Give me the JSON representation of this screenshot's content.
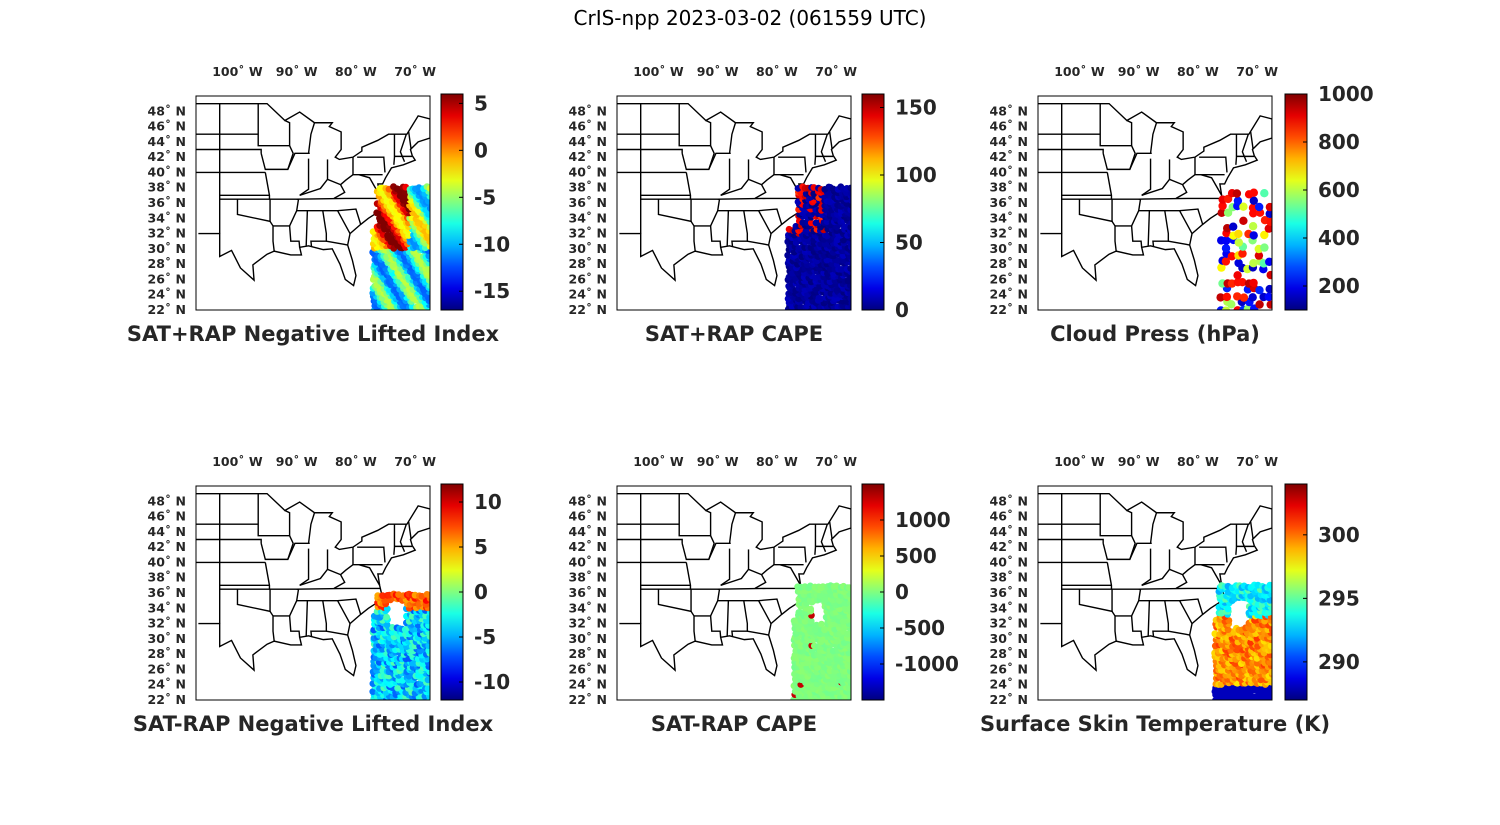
{
  "title": "CrIS-npp 2023-03-02 (061559 UTC)",
  "lon_ticks": [
    {
      "value": -100,
      "label": "100˚ W"
    },
    {
      "value": -90,
      "label": "90˚ W"
    },
    {
      "value": -80,
      "label": "80˚ W"
    },
    {
      "value": -70,
      "label": "70˚ W"
    }
  ],
  "lat_ticks": [
    {
      "value": 22,
      "label": "22˚ N"
    },
    {
      "value": 24,
      "label": "24˚ N"
    },
    {
      "value": 26,
      "label": "26˚ N"
    },
    {
      "value": 28,
      "label": "28˚ N"
    },
    {
      "value": 30,
      "label": "30˚ N"
    },
    {
      "value": 32,
      "label": "32˚ N"
    },
    {
      "value": 34,
      "label": "34˚ N"
    },
    {
      "value": 36,
      "label": "36˚ N"
    },
    {
      "value": 38,
      "label": "38˚ N"
    },
    {
      "value": 40,
      "label": "40˚ N"
    },
    {
      "value": 42,
      "label": "42˚ N"
    },
    {
      "value": 44,
      "label": "44˚ N"
    },
    {
      "value": 46,
      "label": "46˚ N"
    },
    {
      "value": 48,
      "label": "48˚ N"
    }
  ],
  "map_extent": {
    "lon": [
      -107,
      -67.5
    ],
    "lat": [
      22,
      50
    ]
  },
  "colormap": "jet",
  "panels": [
    {
      "id": "sat-rap-plus-nli",
      "title": "SAT+RAP Negative Lifted Index",
      "clim": [
        -17,
        6
      ],
      "ticks": [
        5,
        0,
        -5,
        -10,
        -15
      ],
      "tick_labels": [
        "5",
        "0",
        "-5",
        "-10",
        "-15"
      ]
    },
    {
      "id": "sat-rap-plus-cape",
      "title": "SAT+RAP CAPE",
      "clim": [
        0,
        160
      ],
      "ticks": [
        150,
        100,
        50,
        0
      ],
      "tick_labels": [
        "150",
        "100",
        "50",
        "0"
      ]
    },
    {
      "id": "cloud-press",
      "title": "Cloud Press (hPa)",
      "clim": [
        100,
        1000
      ],
      "ticks": [
        1000,
        800,
        600,
        400,
        200
      ],
      "tick_labels": [
        "1000",
        "800",
        "600",
        "400",
        "200"
      ]
    },
    {
      "id": "sat-rap-minus-nli",
      "title": "SAT-RAP Negative Lifted Index",
      "clim": [
        -12,
        12
      ],
      "ticks": [
        10,
        5,
        0,
        -5,
        -10
      ],
      "tick_labels": [
        "10",
        "5",
        "0",
        "-5",
        "-10"
      ]
    },
    {
      "id": "sat-rap-minus-cape",
      "title": "SAT-RAP CAPE",
      "clim": [
        -1500,
        1500
      ],
      "ticks": [
        1000,
        500,
        0,
        -500,
        -1000
      ],
      "tick_labels": [
        "1000",
        "500",
        "0",
        "-500",
        "-1000"
      ]
    },
    {
      "id": "skin-temp",
      "title": "Surface Skin Temperature (K)",
      "clim": [
        287,
        304
      ],
      "ticks": [
        300,
        295,
        290
      ],
      "tick_labels": [
        "300",
        "295",
        "290"
      ]
    }
  ]
}
